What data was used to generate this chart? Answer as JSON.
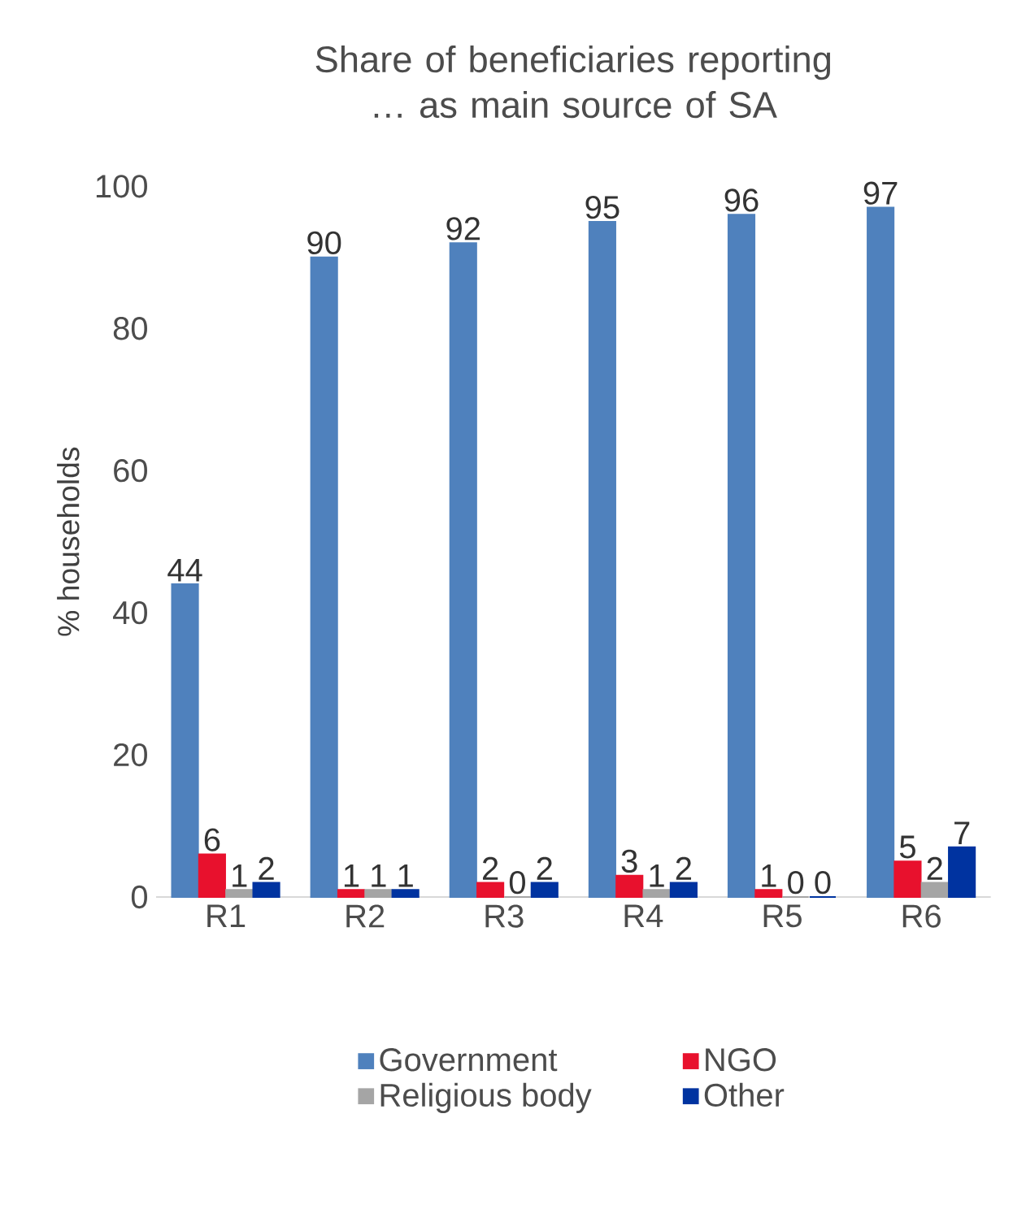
{
  "chart_data": {
    "type": "bar",
    "title": "Share of beneficiaries reporting … as main source of SA",
    "ylabel": "% households",
    "categories": [
      "R1",
      "R2",
      "R3",
      "R4",
      "R5",
      "R6"
    ],
    "series": [
      {
        "name": "Government",
        "color": "#4f81bd",
        "values": [
          44,
          90,
          92,
          95,
          96,
          97
        ]
      },
      {
        "name": "NGO",
        "color": "#e8112d",
        "values": [
          6,
          1,
          2,
          3,
          1,
          5
        ]
      },
      {
        "name": "Religious body",
        "color": "#a5a5a5",
        "values": [
          1,
          1,
          0,
          1,
          0,
          2
        ]
      },
      {
        "name": "Other",
        "color": "#0033a0",
        "values": [
          2,
          1,
          2,
          2,
          0,
          7
        ]
      }
    ],
    "ylim": [
      0,
      100
    ],
    "yticks": [
      0,
      20,
      40,
      60,
      80,
      100
    ],
    "data_labels": true,
    "legend": "bottom",
    "grid": false
  }
}
